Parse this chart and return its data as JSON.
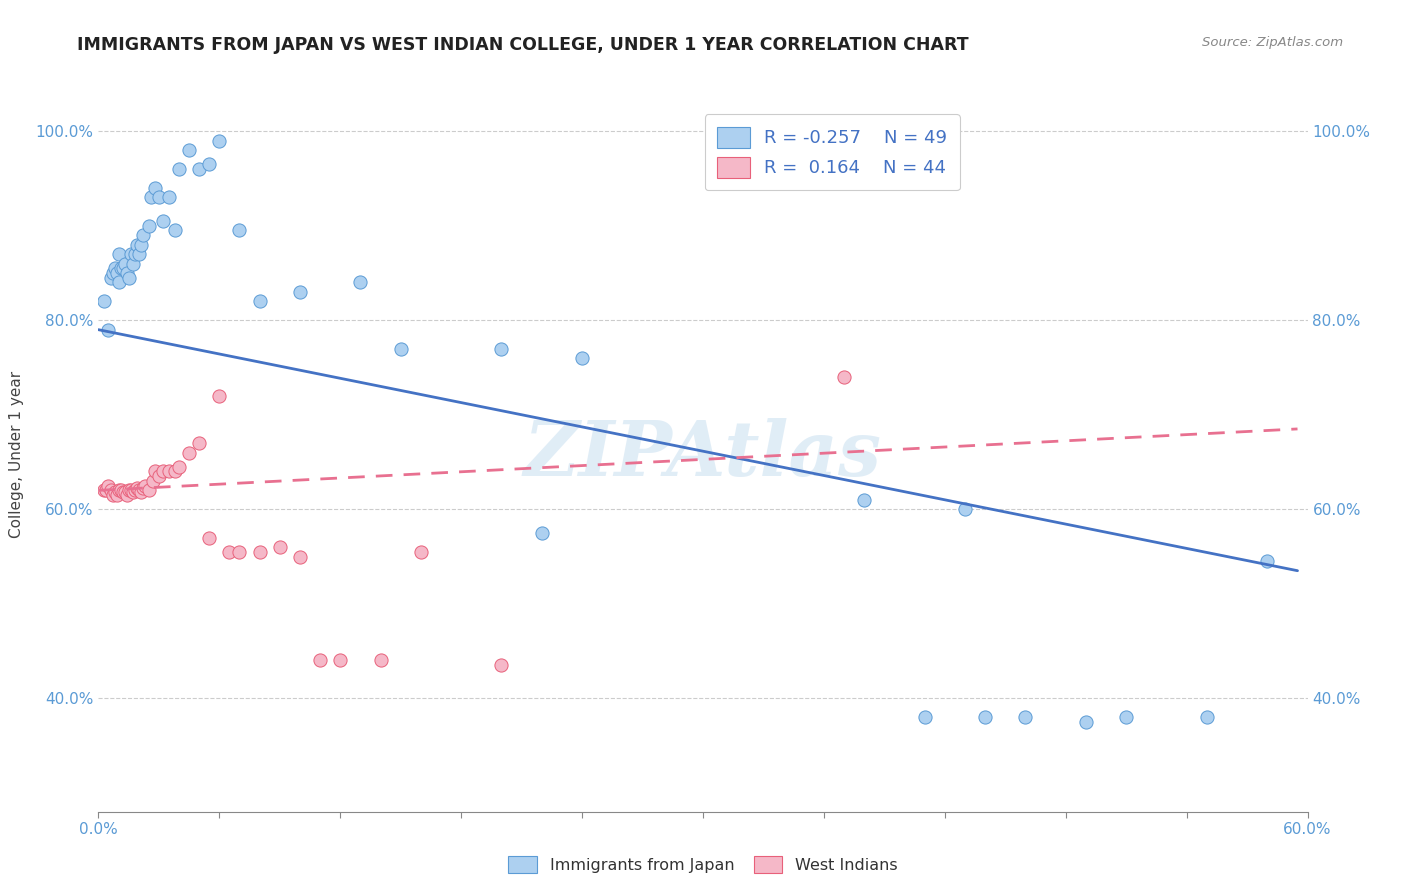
{
  "title": "IMMIGRANTS FROM JAPAN VS WEST INDIAN COLLEGE, UNDER 1 YEAR CORRELATION CHART",
  "source": "Source: ZipAtlas.com",
  "ylabel": "College, Under 1 year",
  "xlim": [
    0.0,
    0.6
  ],
  "ylim": [
    0.28,
    1.035
  ],
  "yticks": [
    0.4,
    0.6,
    0.8,
    1.0
  ],
  "ytick_labels": [
    "40.0%",
    "60.0%",
    "80.0%",
    "100.0%"
  ],
  "xticks": [
    0.0,
    0.06,
    0.12,
    0.18,
    0.24,
    0.3,
    0.36,
    0.42,
    0.48,
    0.54,
    0.6
  ],
  "xtick_labels": [
    "0.0%",
    "",
    "",
    "",
    "",
    "",
    "",
    "",
    "",
    "",
    "60.0%"
  ],
  "blue_color": "#ADD0F0",
  "pink_color": "#F5B8C8",
  "blue_edge_color": "#5B9BD5",
  "pink_edge_color": "#E8607A",
  "blue_line_color": "#4472C4",
  "pink_line_color": "#E87090",
  "watermark": "ZIPAtlas",
  "blue_scatter_x": [
    0.003,
    0.005,
    0.006,
    0.007,
    0.008,
    0.009,
    0.01,
    0.01,
    0.011,
    0.012,
    0.013,
    0.014,
    0.015,
    0.016,
    0.017,
    0.018,
    0.019,
    0.02,
    0.021,
    0.022,
    0.025,
    0.026,
    0.028,
    0.03,
    0.032,
    0.035,
    0.038,
    0.04,
    0.045,
    0.05,
    0.055,
    0.06,
    0.07,
    0.08,
    0.1,
    0.13,
    0.15,
    0.2,
    0.22,
    0.24,
    0.38,
    0.41,
    0.43,
    0.44,
    0.46,
    0.49,
    0.51,
    0.55,
    0.58
  ],
  "blue_scatter_y": [
    0.82,
    0.79,
    0.845,
    0.85,
    0.855,
    0.85,
    0.84,
    0.87,
    0.855,
    0.855,
    0.86,
    0.85,
    0.845,
    0.87,
    0.86,
    0.87,
    0.88,
    0.87,
    0.88,
    0.89,
    0.9,
    0.93,
    0.94,
    0.93,
    0.905,
    0.93,
    0.895,
    0.96,
    0.98,
    0.96,
    0.965,
    0.99,
    0.895,
    0.82,
    0.83,
    0.84,
    0.77,
    0.77,
    0.575,
    0.76,
    0.61,
    0.38,
    0.6,
    0.38,
    0.38,
    0.375,
    0.38,
    0.38,
    0.545
  ],
  "pink_scatter_x": [
    0.003,
    0.004,
    0.005,
    0.006,
    0.007,
    0.008,
    0.009,
    0.01,
    0.011,
    0.012,
    0.013,
    0.014,
    0.015,
    0.016,
    0.017,
    0.018,
    0.019,
    0.02,
    0.021,
    0.022,
    0.023,
    0.025,
    0.027,
    0.028,
    0.03,
    0.032,
    0.035,
    0.038,
    0.04,
    0.045,
    0.05,
    0.055,
    0.06,
    0.065,
    0.07,
    0.08,
    0.09,
    0.1,
    0.11,
    0.12,
    0.14,
    0.16,
    0.2,
    0.37
  ],
  "pink_scatter_y": [
    0.62,
    0.62,
    0.625,
    0.62,
    0.615,
    0.618,
    0.615,
    0.62,
    0.62,
    0.618,
    0.618,
    0.615,
    0.62,
    0.62,
    0.618,
    0.62,
    0.622,
    0.62,
    0.618,
    0.622,
    0.625,
    0.62,
    0.63,
    0.64,
    0.635,
    0.64,
    0.64,
    0.64,
    0.645,
    0.66,
    0.67,
    0.57,
    0.72,
    0.555,
    0.555,
    0.555,
    0.56,
    0.55,
    0.44,
    0.44,
    0.44,
    0.555,
    0.435,
    0.74
  ],
  "blue_line_x": [
    0.0,
    0.595
  ],
  "blue_line_y": [
    0.79,
    0.535
  ],
  "pink_line_x": [
    0.0,
    0.595
  ],
  "pink_line_y": [
    0.62,
    0.685
  ]
}
